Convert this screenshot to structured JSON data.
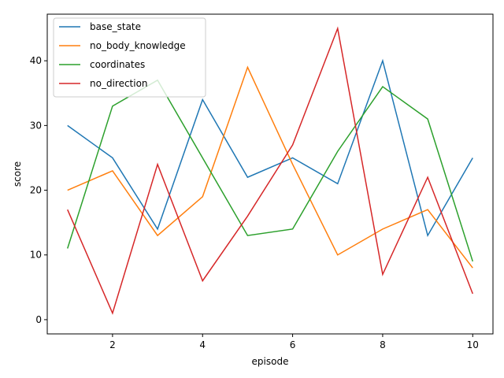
{
  "chart_data": {
    "type": "line",
    "xlabel": "episode",
    "ylabel": "score",
    "xlim": [
      0.55,
      10.45
    ],
    "ylim": [
      -2.2,
      47.2
    ],
    "xticks": [
      2,
      4,
      6,
      8,
      10
    ],
    "yticks": [
      0,
      10,
      20,
      30,
      40
    ],
    "grid": false,
    "legend_position": "top-left",
    "x": [
      1,
      2,
      3,
      4,
      5,
      6,
      7,
      8,
      9,
      10
    ],
    "series": [
      {
        "name": "base_state",
        "color": "#1f77b4",
        "values": [
          30,
          25,
          14,
          34,
          22,
          25,
          21,
          40,
          13,
          25
        ]
      },
      {
        "name": "no_body_knowledge",
        "color": "#ff7f0e",
        "values": [
          20,
          23,
          13,
          19,
          39,
          24,
          10,
          14,
          17,
          8
        ]
      },
      {
        "name": "coordinates",
        "color": "#2ca02c",
        "values": [
          11,
          33,
          37,
          25,
          13,
          14,
          26,
          36,
          31,
          9
        ]
      },
      {
        "name": "no_direction",
        "color": "#d62728",
        "values": [
          17,
          1,
          24,
          6,
          16,
          27,
          45,
          7,
          22,
          4
        ]
      }
    ]
  }
}
